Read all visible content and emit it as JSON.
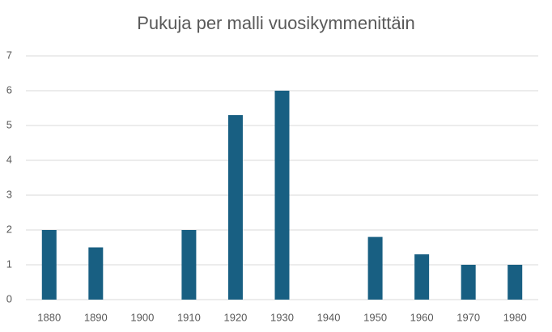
{
  "chart_data": {
    "type": "bar",
    "title": "Pukuja per malli vuosikymmenittäin",
    "categories": [
      "1880",
      "1890",
      "1900",
      "1910",
      "1920",
      "1930",
      "1940",
      "1950",
      "1960",
      "1970",
      "1980"
    ],
    "values": [
      2,
      1.5,
      0,
      2,
      5.3,
      6,
      0,
      1.8,
      1.3,
      1,
      1
    ],
    "color": "#185f82",
    "ylim": [
      0,
      7
    ],
    "yticks": [
      0,
      1,
      2,
      3,
      4,
      5,
      6,
      7
    ],
    "grid": true
  }
}
